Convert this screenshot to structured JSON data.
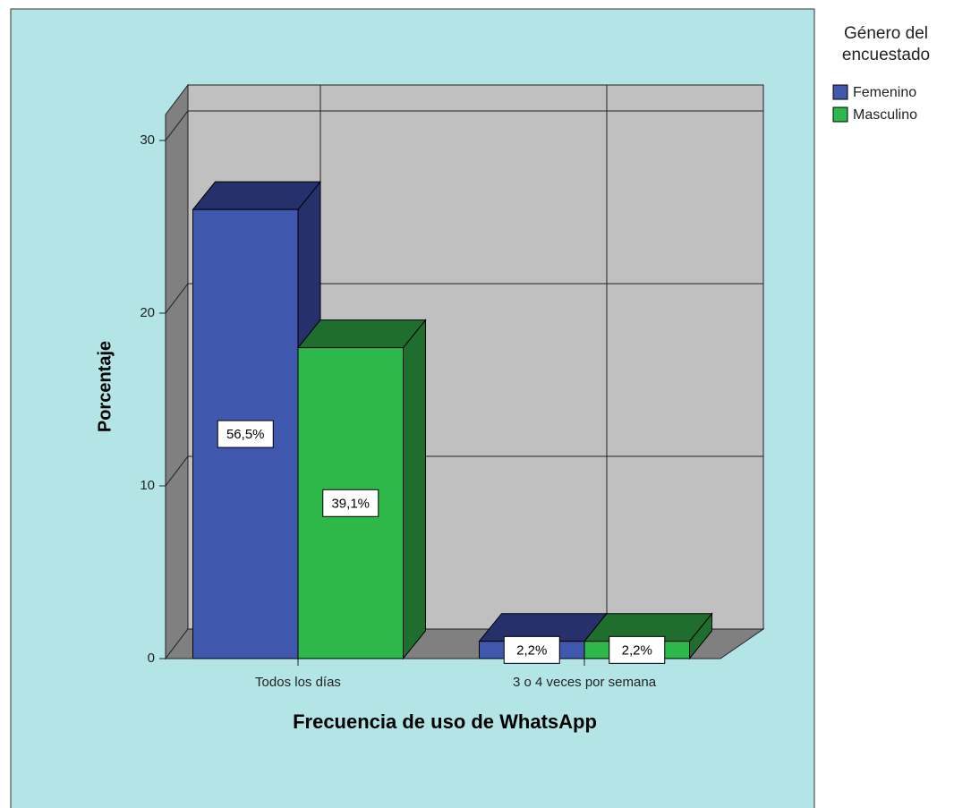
{
  "chart_data": {
    "type": "bar3d",
    "x_label": "Frecuencia de uso de WhatsApp",
    "y_label": "Porcentaje",
    "legend_title": "Género del encuestado",
    "categories": [
      "Todos los días",
      "3 o 4 veces por semana"
    ],
    "series": [
      {
        "name": "Femenino",
        "color": "#3f58ad",
        "shade": "#26306a",
        "values": [
          26,
          1
        ],
        "value_labels": [
          "56,5%",
          "2,2%"
        ]
      },
      {
        "name": "Masculino",
        "color": "#2eb84a",
        "shade": "#1f6e2e",
        "values": [
          18,
          1
        ],
        "value_labels": [
          "39,1%",
          "2,2%"
        ]
      }
    ],
    "ylim": [
      0,
      31.5
    ],
    "yticks": [
      0,
      10,
      20,
      30
    ],
    "grid": true,
    "legend": "right"
  }
}
